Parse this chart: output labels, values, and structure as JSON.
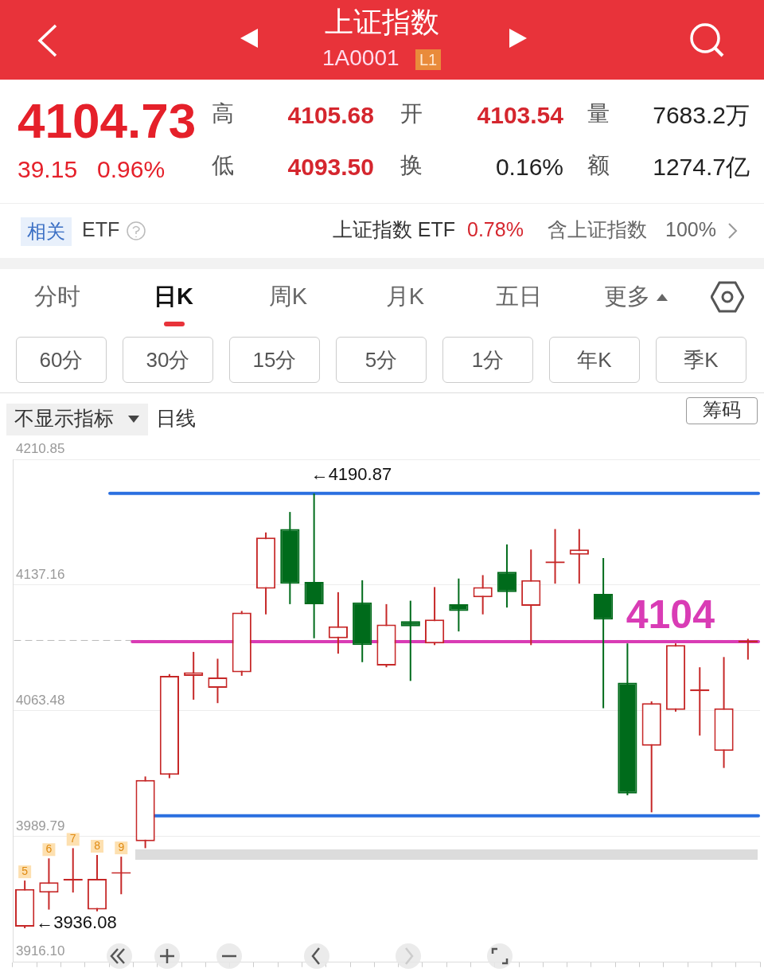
{
  "chart_data": [
    {
      "type": "other",
      "title": "上证指数",
      "subtitle": "1A0001",
      "annotations": [
        "L1",
        "4104.73",
        "39.15",
        "0.96%",
        "高",
        "4105.68",
        "开",
        "4103.54",
        "量",
        "7683.2万",
        "低",
        "4093.50",
        "换",
        "0.16%",
        "额",
        "1274.7亿",
        "相关",
        "ETF",
        "上证指数 ETF",
        "0.78%",
        "含上证指数",
        "100%",
        "分时",
        "日K",
        "周K",
        "月K",
        "五日",
        "更多",
        "60分",
        "30分",
        "15分",
        "5分",
        "1分",
        "年K",
        "季K",
        "不显示指标",
        "日线",
        "筹码"
      ]
    },
    {
      "type": "candlestick",
      "categories": [
        null,
        null,
        null,
        null,
        null,
        null,
        null,
        null,
        null,
        null,
        null,
        null,
        null,
        null,
        null,
        null,
        null,
        null,
        null,
        null,
        null,
        null,
        null,
        null,
        null,
        null,
        null,
        null,
        null,
        null,
        null
      ],
      "ohlc": [
        [
          3937,
          3964,
          3936.08,
          3959
        ],
        [
          3957,
          3977,
          3947,
          3963
        ],
        [
          3964,
          3983,
          3957,
          3965
        ],
        [
          3947,
          3979,
          3946,
          3965
        ],
        [
          3968,
          3978,
          3956,
          3969
        ],
        [
          3987,
          4025,
          3983,
          4023
        ],
        [
          4026,
          4085,
          4024,
          4084
        ],
        [
          4084,
          4098,
          4070,
          4086
        ],
        [
          4077,
          4094,
          4068,
          4083
        ],
        [
          4086,
          4122,
          4084,
          4121
        ],
        [
          4135,
          4168,
          4120,
          4165
        ],
        [
          4170,
          4180,
          4126,
          4138
        ],
        [
          4139,
          4190.87,
          4106,
          4126
        ],
        [
          4106,
          4133,
          4097,
          4113
        ],
        [
          4127,
          4140,
          4092,
          4102
        ],
        [
          4090,
          4126,
          4089,
          4114
        ],
        [
          4116,
          4128,
          4081,
          4113
        ],
        [
          4103,
          4136,
          4102,
          4117
        ],
        [
          4126,
          4141,
          4110,
          4122
        ],
        [
          4130,
          4143,
          4120,
          4136
        ],
        [
          4145,
          4161,
          4124,
          4133
        ],
        [
          4125,
          4158,
          4102,
          4140
        ],
        [
          4150,
          4170,
          4138,
          4151
        ],
        [
          4155,
          4170,
          4138,
          4158
        ],
        [
          4132,
          4153,
          4065,
          4117
        ],
        [
          4080,
          4103,
          4014,
          4015
        ],
        [
          4043,
          4069,
          4004,
          4068
        ],
        [
          4064,
          4103,
          4063,
          4102
        ],
        [
          4075,
          4089,
          4049,
          4076
        ],
        [
          4040,
          4095,
          4030,
          4065
        ],
        [
          4103.54,
          4105.68,
          4093.5,
          4104.73
        ]
      ],
      "colors": [
        "#c62828",
        "#c62828",
        "#c62828",
        "#c62828",
        "#c62828",
        "#c62828",
        "#c62828",
        "#c62828",
        "#c62828",
        "#c62828",
        "#c62828",
        "#006b1b",
        "#006b1b",
        "#c62828",
        "#006b1b",
        "#c62828",
        "#006b1b",
        "#c62828",
        "#006b1b",
        "#c62828",
        "#006b1b",
        "#c62828",
        "#c62828",
        "#c62828",
        "#006b1b",
        "#006b1b",
        "#c62828",
        "#c62828",
        "#c62828",
        "#c62828",
        "#c62828"
      ],
      "ylim": [
        3916.1,
        4210.85
      ],
      "yticks": [
        {
          "value": 3916.1,
          "label": "3916.10"
        },
        3989.79,
        4063.48,
        4137.16,
        4210.85
      ],
      "grid": "y",
      "legend": false,
      "tick_labels": "y",
      "ref_lines": [
        {
          "axis": "y",
          "value": 4104.73,
          "color": "#bbbbbb",
          "line_style": "dashed"
        },
        {
          "axis": "y",
          "value": 4190.87,
          "color": "#2a6fe0"
        },
        {
          "axis": "y",
          "value": 4104,
          "label": "4104",
          "color": "#d93cb5"
        },
        {
          "axis": "y",
          "value": 4002,
          "color": "#2a6fe0"
        }
      ],
      "annotations": [
        {
          "text": "←4190.87",
          "y": 4190.87
        },
        "←3936.08",
        "5",
        "6",
        "7",
        "8",
        "9"
      ]
    }
  ]
}
